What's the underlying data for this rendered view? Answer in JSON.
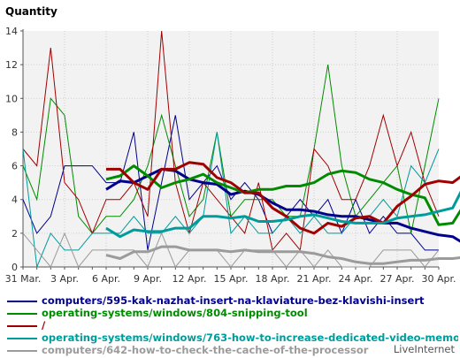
{
  "chart_data": {
    "type": "line",
    "ylabel": "Quantity",
    "ylim": [
      0,
      14
    ],
    "yticks": [
      "0",
      "2",
      "4",
      "6",
      "8",
      "10",
      "12",
      "14"
    ],
    "xtick_labels": [
      "31 Mar.",
      "3 Apr.",
      "6 Apr.",
      "9 Apr.",
      "12 Apr.",
      "15 Apr.",
      "18 Apr.",
      "21 Apr.",
      "24 Apr.",
      "27 Apr.",
      "30 Apr."
    ],
    "x_count": 31,
    "grid": true,
    "legend_position": "bottom",
    "series": [
      {
        "name": "computers/595-kak-nazhat-insert-na-klaviature-bez-klavishi-insert",
        "color": "#00008b",
        "daily": [
          4,
          2,
          3,
          6,
          6,
          6,
          5,
          5,
          8,
          1,
          5,
          9,
          4,
          5,
          6,
          4,
          5,
          4,
          2,
          3,
          4,
          3,
          4,
          2,
          4,
          2,
          3,
          2,
          2,
          1,
          1
        ],
        "avg_start": 6,
        "avg": [
          4.6,
          5.1,
          5.0,
          5.4,
          5.8,
          5.7,
          5.2,
          5.0,
          4.9,
          4.3,
          4.5,
          4.3,
          3.8,
          3.4,
          3.4,
          3.3,
          3.1,
          3.0,
          3.0,
          2.8,
          2.6,
          2.6,
          2.3,
          2.1,
          1.9,
          1.8,
          1.3
        ]
      },
      {
        "name": "operating-systems/windows/804-snipping-tool",
        "color": "#008b00",
        "daily": [
          6,
          4,
          10,
          9,
          3,
          2,
          3,
          3,
          4,
          6,
          9,
          6,
          3,
          4,
          8,
          3,
          4,
          4,
          4,
          3,
          3,
          7,
          12,
          6,
          3,
          4,
          5,
          6,
          2,
          6,
          10
        ],
        "avg_start": 6,
        "avg": [
          5.2,
          5.4,
          6.0,
          5.4,
          4.7,
          5.0,
          5.2,
          5.5,
          5.0,
          4.7,
          4.4,
          4.6,
          4.6,
          4.8,
          4.8,
          5.0,
          5.5,
          5.7,
          5.6,
          5.2,
          5.0,
          4.6,
          4.3,
          4.1,
          2.5,
          2.6,
          3.9
        ]
      },
      {
        "name": "/",
        "color": "#a00000",
        "daily": [
          7,
          6,
          13,
          5,
          4,
          2,
          4,
          4,
          5,
          3,
          14,
          5,
          2,
          5,
          4,
          3,
          2,
          5,
          1,
          2,
          1,
          7,
          6,
          4,
          4,
          6,
          9,
          6,
          8,
          5,
          3
        ],
        "avg_start": 6,
        "avg": [
          5.8,
          5.8,
          5.0,
          4.6,
          5.8,
          5.8,
          6.2,
          6.1,
          5.3,
          5.0,
          4.4,
          4.4,
          3.5,
          3.0,
          2.3,
          2.0,
          2.6,
          2.4,
          2.9,
          3.0,
          2.6,
          3.6,
          4.2,
          4.9,
          5.1,
          5.0,
          5.6
        ]
      },
      {
        "name": "operating-systems/windows/763-how-to-increase-dedicated-video-memory",
        "color": "#009b9b",
        "daily": [
          7,
          0,
          2,
          1,
          1,
          2,
          2,
          2,
          3,
          2,
          2,
          3,
          2,
          3,
          8,
          2,
          3,
          2,
          2,
          3,
          2,
          3,
          2,
          2,
          3,
          3,
          4,
          3,
          6,
          5,
          7
        ],
        "avg_start": 6,
        "avg": [
          2.3,
          1.8,
          2.2,
          2.1,
          2.1,
          2.3,
          2.3,
          3.0,
          3.0,
          2.9,
          3.0,
          2.7,
          2.7,
          2.8,
          3.0,
          3.1,
          2.9,
          2.7,
          2.6,
          2.6,
          2.6,
          2.9,
          3.0,
          3.1,
          3.3,
          3.5,
          5.1
        ]
      },
      {
        "name": "computers/642-how-to-check-the-cache-of-the-processor",
        "color": "#9b9b9b",
        "daily": [
          2,
          1,
          0,
          2,
          0,
          1,
          1,
          1,
          1,
          0,
          2,
          0,
          1,
          1,
          1,
          0,
          1,
          1,
          1,
          0,
          1,
          0,
          1,
          0,
          0,
          0,
          1,
          1,
          1,
          0,
          1
        ],
        "avg_start": 6,
        "avg": [
          0.7,
          0.5,
          0.9,
          0.9,
          1.2,
          1.2,
          1.0,
          1.0,
          1.0,
          0.9,
          1.0,
          0.9,
          0.9,
          0.9,
          0.9,
          0.8,
          0.6,
          0.5,
          0.3,
          0.2,
          0.2,
          0.3,
          0.4,
          0.4,
          0.5,
          0.5,
          0.6
        ]
      }
    ]
  },
  "credit": "LiveInternet"
}
